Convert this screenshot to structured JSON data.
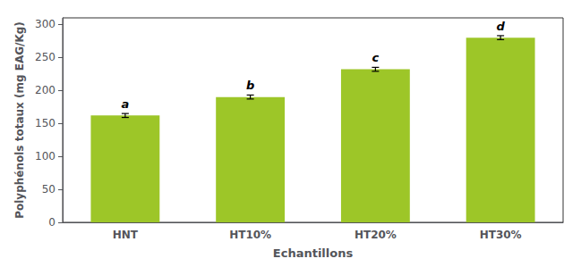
{
  "chart_data": {
    "type": "bar",
    "categories": [
      "HNT",
      "HT10%",
      "HT20%",
      "HT30%"
    ],
    "values": [
      162,
      190,
      232,
      280
    ],
    "errors": [
      3,
      3,
      3,
      3
    ],
    "annotations": [
      "a",
      "b",
      "c",
      "d"
    ],
    "color": "#9DC628",
    "xlabel": "Echantillons",
    "ylabel": "Polyphénols totaux (mg EAG/Kg)",
    "ylim": [
      0,
      310
    ],
    "yticks": [
      0,
      50,
      100,
      150,
      200,
      250,
      300
    ],
    "grid": false
  }
}
